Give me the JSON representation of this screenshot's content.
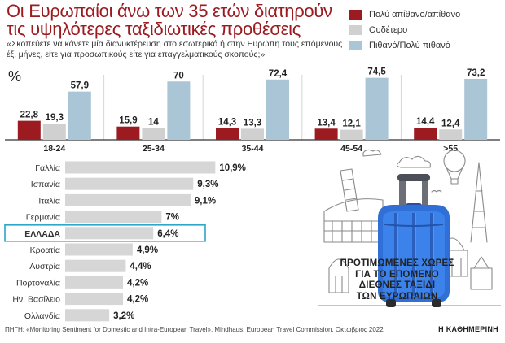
{
  "header": {
    "title_lines": [
      "Οι Ευρωπαίοι άνω των 35 ετών διατηρούν",
      "τις υψηλότερες ταξιδιωτικές προθέσεις"
    ],
    "subtitle": "«Σκοπεύετε να κάνετε μία διανυκτέρευση στο εσωτερικό ή στην Ευρώπη τους επόμενους έξι μήνες, είτε για προσωπικούς είτε για επαγγελματικούς σκοπούς;»"
  },
  "colors": {
    "title": "#9b1b21",
    "negative": "#9b1b21",
    "neutral": "#d0d0d0",
    "positive": "#a9c5d6",
    "ranking_bar": "#d6d6d6",
    "highlight_box": "#2aa7c9"
  },
  "chart_data": [
    {
      "type": "bar",
      "unit_label": "%",
      "categories": [
        "18-24",
        "25-34",
        "35-44",
        "45-54",
        ">55"
      ],
      "series": [
        {
          "name": "Πολύ απίθανο/απίθανο",
          "values": [
            22.8,
            15.9,
            14.3,
            13.4,
            14.4
          ],
          "labels": [
            "22,8",
            "15,9",
            "14,3",
            "13,4",
            "14,4"
          ]
        },
        {
          "name": "Ουδέτερο",
          "values": [
            19.3,
            14,
            13.3,
            12.1,
            12.4
          ],
          "labels": [
            "19,3",
            "14",
            "13,3",
            "12,1",
            "12,4"
          ]
        },
        {
          "name": "Πιθανό/Πολύ πιθανό",
          "values": [
            57.9,
            70,
            72.4,
            74.5,
            73.2
          ],
          "labels": [
            "57,9",
            "70",
            "72,4",
            "74,5",
            "73,2"
          ]
        }
      ],
      "legend_position": "top-right",
      "grid": true
    },
    {
      "type": "bar",
      "orientation": "horizontal",
      "categories": [
        "Γαλλία",
        "Ισπανία",
        "Ιταλία",
        "Γερμανία",
        "ΕΛΛΑΔΑ",
        "Κροατία",
        "Αυστρία",
        "Πορτογαλία",
        "Ην. Βασίλειο",
        "Ολλανδία"
      ],
      "values": [
        10.9,
        9.3,
        9.1,
        7,
        6.4,
        4.9,
        4.4,
        4.2,
        4.2,
        3.2
      ],
      "labels": [
        "10,9%",
        "9,3%",
        "9,1%",
        "7%",
        "6,4%",
        "4,9%",
        "4,4%",
        "4,2%",
        "4,2%",
        "3,2%"
      ],
      "highlight": "ΕΛΛΑΔΑ",
      "caption_lines": [
        "ΠΡΟΤΙΜΩΜΕΝΕΣ ΧΩΡΕΣ",
        "ΓΙΑ ΤΟ ΕΠΟΜΕΝΟ",
        "ΔΙΕΘΝΕΣ ΤΑΞΙΔΙ",
        "ΤΩΝ ΕΥΡΩΠΑΙΩΝ"
      ]
    }
  ],
  "footer": {
    "source": "ΠΗΓΗ: «Monitoring Sentiment for Domestic and Intra-European Travel», Mindhaus, European Travel Commission, Οκτώβριος 2022",
    "brand": "Η ΚΑΘΗΜΕΡΙΝΗ"
  },
  "illustration": {
    "icon": "suitcase-landmarks-icon"
  }
}
